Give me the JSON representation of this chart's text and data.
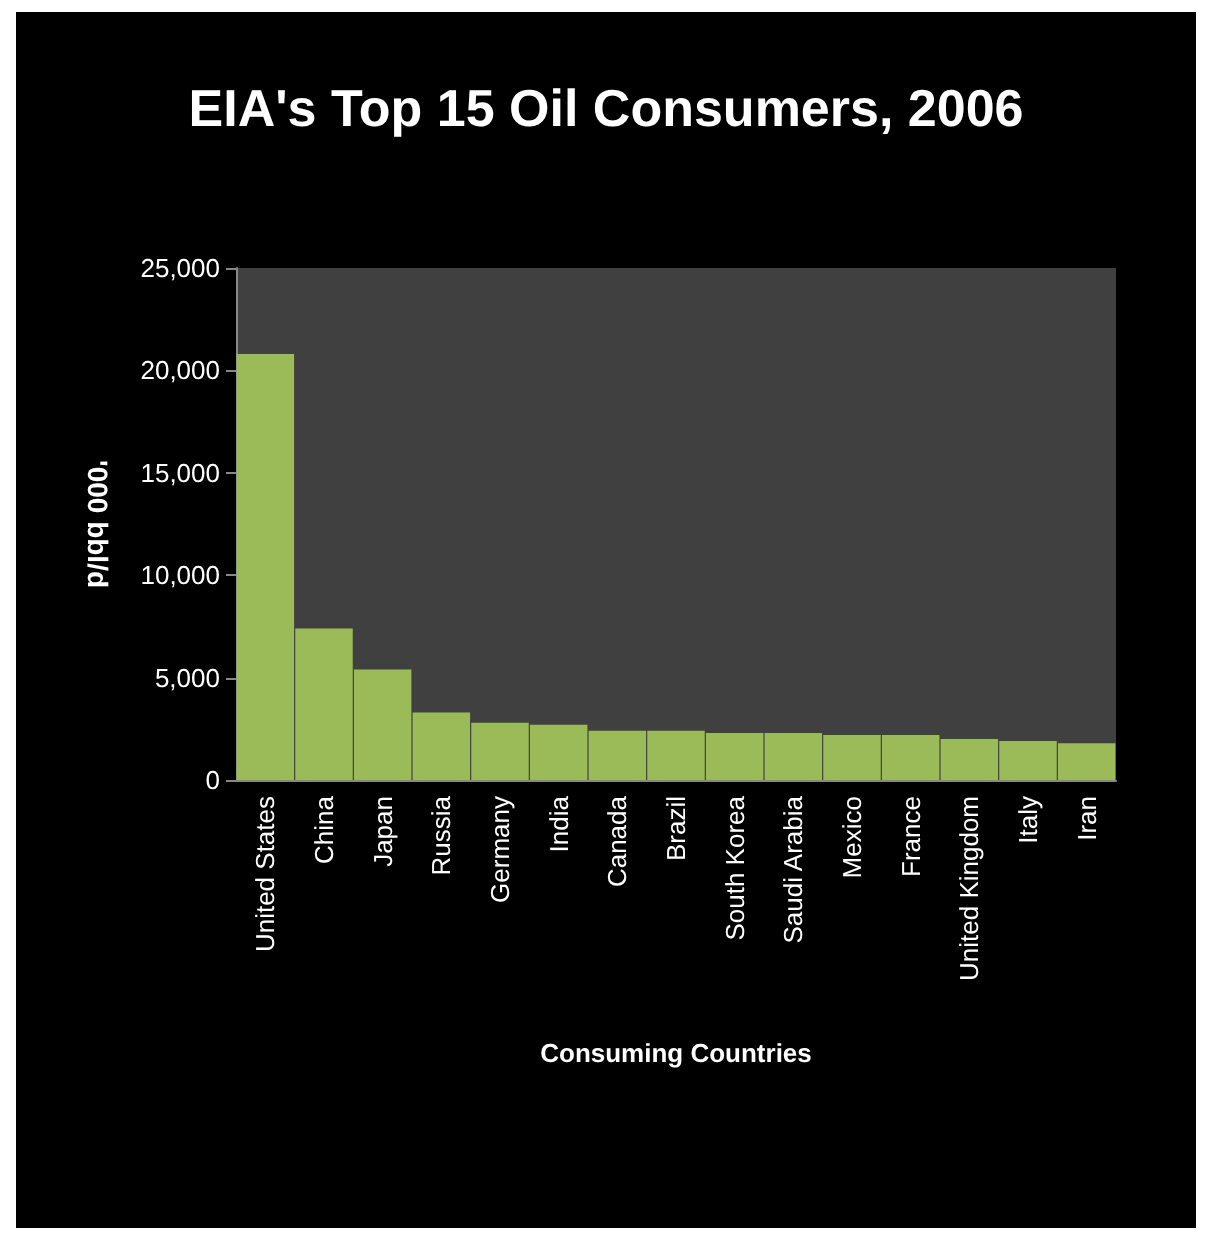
{
  "chart_data": {
    "type": "bar",
    "title": "EIA's Top 15 Oil Consumers, 2006",
    "xlabel": "Consuming Countries",
    "ylabel": "'000 bbl/d",
    "categories": [
      "United States",
      "China",
      "Japan",
      "Russia",
      "Germany",
      "India",
      "Canada",
      "Brazil",
      "South Korea",
      "Saudi Arabia",
      "Mexico",
      "France",
      "United Kingdom",
      "Italy",
      "Iran"
    ],
    "values": [
      20800,
      7400,
      5400,
      3300,
      2800,
      2700,
      2400,
      2400,
      2300,
      2300,
      2200,
      2200,
      2000,
      1900,
      1800
    ],
    "color": "#9bbb59",
    "ylim": [
      0,
      25000
    ],
    "yticks": [
      {
        "value": 0,
        "label": "0"
      },
      {
        "value": 5000,
        "label": "5,000"
      },
      {
        "value": 10000,
        "label": "10,000"
      },
      {
        "value": 15000,
        "label": "15,000"
      },
      {
        "value": 20000,
        "label": "20,000"
      },
      {
        "value": 25000,
        "label": "25,000"
      }
    ],
    "grid": false
  }
}
